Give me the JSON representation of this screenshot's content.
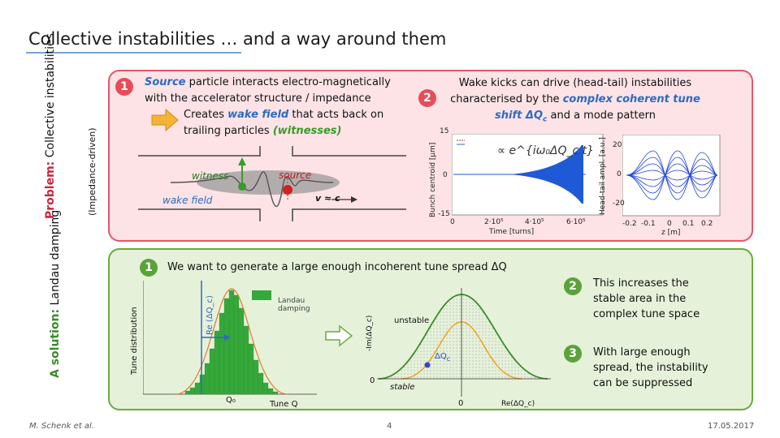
{
  "title": "Collective instabilities … and a way around them",
  "problem": {
    "side_label_bold": "Problem:",
    "side_label_rest": " Collective instabilities",
    "side_sub": "(Impedance-driven)",
    "step1_num": "1",
    "step1_part1": "Source",
    "step1_part2": " particle interacts electro-magnetically",
    "step1_line2": "with the accelerator structure / impedance",
    "step1_line3a": "Creates ",
    "step1_line3b": "wake field",
    "step1_line3c": " that acts back on",
    "step1_line4a": "trailing particles ",
    "step1_line4b": "(witnesses)",
    "label_witness": "witness",
    "label_source": "source",
    "label_v": "v ≈ c",
    "label_wake": "wake field",
    "step2_num": "2",
    "step2_line1": "Wake kicks can drive (head-tail) instabilities",
    "step2_line2a": "characterised by the ",
    "step2_line2b": "complex coherent tune",
    "step2_line3a": "shift ΔQ",
    "step2_line3sub": "c",
    "step2_line3b": " and a mode pattern",
    "plot1": {
      "ylabel": "Bunch centroid [μm]",
      "xlabel": "Time [turns]",
      "yticks": [
        "15",
        "0",
        "-15"
      ],
      "xticks": [
        "0",
        "2·10⁵",
        "4·10⁵",
        "6·10⁵"
      ],
      "formula": "∝ e^{iω₀ΔQ_c t}"
    },
    "plot2": {
      "ylabel": "Head-tail ampl. [a.u.]",
      "xlabel": "z [m]",
      "yticks": [
        "20",
        "0",
        "-20"
      ],
      "xticks": [
        "-0.2",
        "-0.1",
        "0",
        "0.1",
        "0.2"
      ]
    }
  },
  "solution": {
    "side_label_bold": "A solution:",
    "side_label_rest": " Landau damping",
    "s1_num": "1",
    "s1_text": "We want to generate a large enough incoherent tune spread ΔQ",
    "hist": {
      "ylabel": "Tune distribution",
      "xlabel": "Tune Q",
      "x0": "Q₀",
      "legend": "Landau damping"
    },
    "stab": {
      "ylabel_re": "Re (ΔQ_c)",
      "ylabel_im": "-Im(ΔQ_c)",
      "zero_y": "0",
      "zero_x": "0",
      "xlabel": "Re(ΔQ_c)",
      "unstable": "unstable",
      "stable": "stable",
      "dq": "ΔQ",
      "dq_sub": "c"
    },
    "s2_num": "2",
    "s2_text": [
      "This increases the",
      "stable area in the",
      "complex tune space"
    ],
    "s3_num": "3",
    "s3_text": [
      "With large enough",
      "spread, the instability",
      "can be suppressed"
    ]
  },
  "footer": {
    "author": "M. Schenk et al.",
    "page": "4",
    "date": "17.05.2017"
  },
  "colors": {
    "red_border": "#e8556a",
    "red_fill": "#fde3e6",
    "green_border": "#6aaa3e",
    "green_fill": "#e6f1da",
    "accent_blue": "#2d6bc0"
  }
}
